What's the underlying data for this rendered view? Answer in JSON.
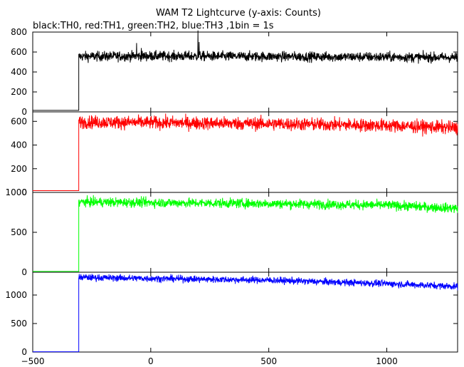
{
  "chart_data": {
    "type": "line",
    "title": "WAM T2 Lightcurve (y-axis: Counts)",
    "subtitle": "black:TH0, red:TH1, green:TH2, blue:TH3 ,1bin = 1s",
    "xlim": [
      -500,
      1300
    ],
    "x_ticks": [
      -500,
      0,
      500,
      1000
    ],
    "x_tick_labels": [
      "−500",
      "0",
      "500",
      "1000"
    ],
    "trigger_x": -305,
    "grid": false,
    "panels": [
      {
        "name": "TH0",
        "color": "#000000",
        "ylim": [
          0,
          800
        ],
        "y_ticks": [
          0,
          200,
          400,
          600,
          800
        ],
        "y_tick_labels": [
          "0",
          "200",
          "400",
          "600",
          "800"
        ],
        "pre_level": 15,
        "level_points": [
          [
            -305,
            555
          ],
          [
            0,
            560
          ],
          [
            500,
            555
          ],
          [
            1000,
            550
          ],
          [
            1300,
            545
          ]
        ],
        "noise": 25,
        "spikes": [
          [
            -60,
            690
          ],
          [
            -40,
            640
          ],
          [
            200,
            820
          ],
          [
            205,
            700
          ]
        ]
      },
      {
        "name": "TH1",
        "color": "#ff0000",
        "ylim": [
          0,
          680
        ],
        "y_ticks": [
          0,
          200,
          400,
          600
        ],
        "y_tick_labels": [
          "0",
          "200",
          "400",
          "600"
        ],
        "pre_level": 15,
        "level_points": [
          [
            -305,
            595
          ],
          [
            500,
            580
          ],
          [
            1000,
            565
          ],
          [
            1300,
            545
          ]
        ],
        "noise": 28,
        "spikes": []
      },
      {
        "name": "TH2",
        "color": "#00ff00",
        "ylim": [
          0,
          1000
        ],
        "y_ticks": [
          0,
          500,
          1000
        ],
        "y_tick_labels": [
          "0",
          "500",
          "1000"
        ],
        "pre_level": 10,
        "level_points": [
          [
            -305,
            880
          ],
          [
            500,
            860
          ],
          [
            1000,
            840
          ],
          [
            1300,
            800
          ]
        ],
        "noise": 30,
        "spikes": []
      },
      {
        "name": "TH3",
        "color": "#0000ff",
        "ylim": [
          0,
          1400
        ],
        "y_ticks": [
          0,
          500,
          1000
        ],
        "y_tick_labels": [
          "0",
          "500",
          "1000"
        ],
        "pre_level": 5,
        "level_points": [
          [
            -305,
            1310
          ],
          [
            500,
            1260
          ],
          [
            1000,
            1200
          ],
          [
            1300,
            1150
          ]
        ],
        "noise": 30,
        "spikes": []
      }
    ]
  }
}
